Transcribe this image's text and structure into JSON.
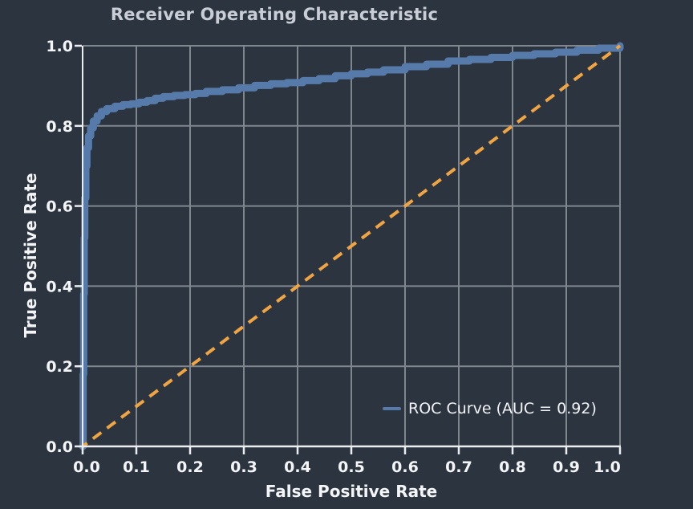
{
  "colors": {
    "background": "#2c3440",
    "grid": "#80868e",
    "axis": "#ebedf0",
    "tick_label_text": "#f4f5f7",
    "title_text": "#c9cdd5",
    "roc_curve": "#567aa9",
    "chance_line": "#f0a542",
    "legend_text": "#f2f3f5"
  },
  "chart_data": {
    "type": "line",
    "title": "Receiver Operating Characteristic",
    "xlabel": "False Positive Rate",
    "ylabel": "True Positive Rate",
    "xlim": [
      0.0,
      1.0
    ],
    "ylim": [
      0.0,
      1.0
    ],
    "grid": true,
    "x_tick_values": [
      0.0,
      0.1,
      0.2,
      0.3,
      0.4,
      0.5,
      0.6,
      0.7,
      0.8,
      0.9,
      1.0
    ],
    "x_tick_labels": [
      "0.0",
      "0.1",
      "0.2",
      "0.3",
      "0.4",
      "0.5",
      "0.6",
      "0.7",
      "0.8",
      "0.9",
      "1.0"
    ],
    "y_tick_values": [
      0.0,
      0.2,
      0.4,
      0.6,
      0.8,
      1.0
    ],
    "y_tick_labels": [
      "0.0",
      "0.2",
      "0.4",
      "0.6",
      "0.8",
      "1.0"
    ],
    "legend": {
      "position": "lower right",
      "entries": [
        {
          "label": "ROC Curve (AUC = 0.92)",
          "color": "#567aa9"
        }
      ]
    },
    "auc": 0.92,
    "series": [
      {
        "name": "ROC Curve (AUC = 0.92)",
        "color": "#567aa9",
        "width": 9,
        "stepped": true,
        "dashed": false,
        "points": [
          [
            0.0,
            0.0
          ],
          [
            0.001,
            0.18
          ],
          [
            0.002,
            0.38
          ],
          [
            0.003,
            0.52
          ],
          [
            0.004,
            0.62
          ],
          [
            0.006,
            0.7
          ],
          [
            0.008,
            0.745
          ],
          [
            0.011,
            0.775
          ],
          [
            0.015,
            0.795
          ],
          [
            0.02,
            0.812
          ],
          [
            0.027,
            0.825
          ],
          [
            0.035,
            0.836
          ],
          [
            0.045,
            0.843
          ],
          [
            0.06,
            0.849
          ],
          [
            0.075,
            0.853
          ],
          [
            0.09,
            0.855
          ],
          [
            0.105,
            0.859
          ],
          [
            0.12,
            0.863
          ],
          [
            0.135,
            0.869
          ],
          [
            0.15,
            0.873
          ],
          [
            0.17,
            0.876
          ],
          [
            0.19,
            0.878
          ],
          [
            0.21,
            0.881
          ],
          [
            0.23,
            0.886
          ],
          [
            0.26,
            0.89
          ],
          [
            0.29,
            0.895
          ],
          [
            0.32,
            0.901
          ],
          [
            0.35,
            0.905
          ],
          [
            0.38,
            0.908
          ],
          [
            0.41,
            0.913
          ],
          [
            0.44,
            0.918
          ],
          [
            0.47,
            0.925
          ],
          [
            0.5,
            0.93
          ],
          [
            0.53,
            0.934
          ],
          [
            0.56,
            0.94
          ],
          [
            0.6,
            0.948
          ],
          [
            0.64,
            0.954
          ],
          [
            0.68,
            0.962
          ],
          [
            0.72,
            0.966
          ],
          [
            0.76,
            0.971
          ],
          [
            0.8,
            0.976
          ],
          [
            0.84,
            0.98
          ],
          [
            0.88,
            0.984
          ],
          [
            0.92,
            0.989
          ],
          [
            0.96,
            0.994
          ],
          [
            1.0,
            1.0
          ]
        ]
      },
      {
        "name": "chance-diagonal",
        "color": "#f0a542",
        "width": 4,
        "stepped": false,
        "dashed": true,
        "points": [
          [
            0.0,
            0.0
          ],
          [
            1.0,
            1.0
          ]
        ]
      }
    ]
  }
}
